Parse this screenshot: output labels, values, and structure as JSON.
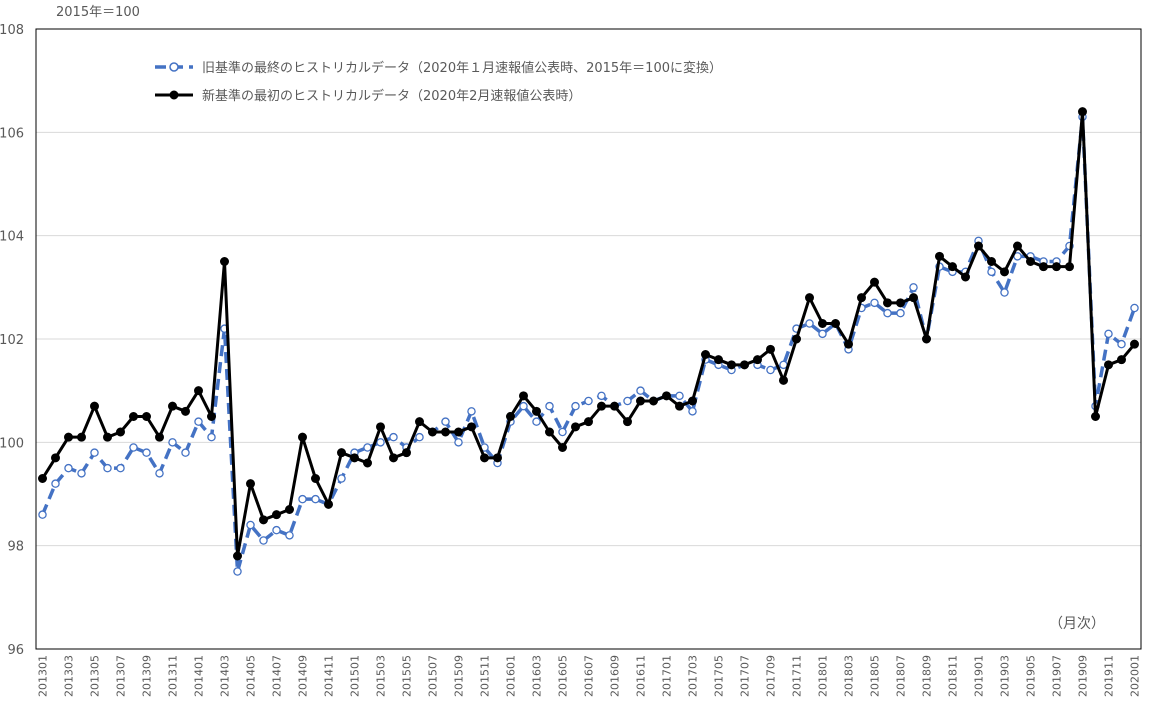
{
  "chart_data": {
    "type": "line",
    "unit_label": "2015年＝100",
    "note": "（月次）",
    "ylim": [
      96,
      108
    ],
    "y_ticks": [
      "96",
      "98",
      "100",
      "102",
      "104",
      "106",
      "108"
    ],
    "grid": true,
    "legend_position": "top-left",
    "x": [
      "201301",
      "201302",
      "201303",
      "201304",
      "201305",
      "201306",
      "201307",
      "201308",
      "201309",
      "201310",
      "201311",
      "201312",
      "201401",
      "201402",
      "201403",
      "201404",
      "201405",
      "201406",
      "201407",
      "201408",
      "201409",
      "201410",
      "201411",
      "201412",
      "201501",
      "201502",
      "201503",
      "201504",
      "201505",
      "201506",
      "201507",
      "201508",
      "201509",
      "201510",
      "201511",
      "201512",
      "201601",
      "201602",
      "201603",
      "201604",
      "201605",
      "201606",
      "201607",
      "201608",
      "201609",
      "201610",
      "201611",
      "201612",
      "201701",
      "201702",
      "201703",
      "201704",
      "201705",
      "201706",
      "201707",
      "201708",
      "201709",
      "201710",
      "201711",
      "201712",
      "201801",
      "201802",
      "201803",
      "201804",
      "201805",
      "201806",
      "201807",
      "201808",
      "201809",
      "201810",
      "201811",
      "201812",
      "201901",
      "201902",
      "201903",
      "201904",
      "201905",
      "201906",
      "201907",
      "201908",
      "201909",
      "201910",
      "201911",
      "201912",
      "202001"
    ],
    "x_tick_labels": [
      "201301",
      "201303",
      "201305",
      "201307",
      "201309",
      "201311",
      "201401",
      "201403",
      "201405",
      "201407",
      "201409",
      "201411",
      "201501",
      "201503",
      "201505",
      "201507",
      "201509",
      "201511",
      "201601",
      "201603",
      "201605",
      "201607",
      "201609",
      "201611",
      "201701",
      "201703",
      "201705",
      "201707",
      "201709",
      "201711",
      "201801",
      "201803",
      "201805",
      "201807",
      "201809",
      "201811",
      "201901",
      "201903",
      "201905",
      "201907",
      "201909",
      "201911",
      "202001"
    ],
    "series": [
      {
        "name": "旧基準の最終のヒストリカルデータ（2020年１月速報値公表時、2015年＝100に変換）",
        "color": "#4472C4",
        "style": "dashed-open-circle",
        "values": [
          98.6,
          99.2,
          99.5,
          99.4,
          99.8,
          99.5,
          99.5,
          99.9,
          99.8,
          99.4,
          100.0,
          99.8,
          100.4,
          100.1,
          102.2,
          97.5,
          98.4,
          98.1,
          98.3,
          98.2,
          98.9,
          98.9,
          98.8,
          99.3,
          99.8,
          99.9,
          100.0,
          100.1,
          99.9,
          100.1,
          100.2,
          100.4,
          100.0,
          100.6,
          99.9,
          99.6,
          100.4,
          100.7,
          100.4,
          100.7,
          100.2,
          100.7,
          100.8,
          100.9,
          100.7,
          100.8,
          101.0,
          100.8,
          100.9,
          100.9,
          100.6,
          101.6,
          101.5,
          101.4,
          101.5,
          101.5,
          101.4,
          101.5,
          102.2,
          102.3,
          102.1,
          102.3,
          101.8,
          102.6,
          102.7,
          102.5,
          102.5,
          103.0,
          102.0,
          103.4,
          103.3,
          103.3,
          103.9,
          103.3,
          102.9,
          103.6,
          103.6,
          103.5,
          103.5,
          103.8,
          106.3,
          100.7,
          102.1,
          101.9,
          102.6
        ]
      },
      {
        "name": "新基準の最初のヒストリカルデータ（2020年2月速報値公表時）",
        "color": "#000000",
        "style": "solid-filled-circle",
        "values": [
          99.3,
          99.7,
          100.1,
          100.1,
          100.7,
          100.1,
          100.2,
          100.5,
          100.5,
          100.1,
          100.7,
          100.6,
          101.0,
          100.5,
          103.5,
          97.8,
          99.2,
          98.5,
          98.6,
          98.7,
          100.1,
          99.3,
          98.8,
          99.8,
          99.7,
          99.6,
          100.3,
          99.7,
          99.8,
          100.4,
          100.2,
          100.2,
          100.2,
          100.3,
          99.7,
          99.7,
          100.5,
          100.9,
          100.6,
          100.2,
          99.9,
          100.3,
          100.4,
          100.7,
          100.7,
          100.4,
          100.8,
          100.8,
          100.9,
          100.7,
          100.8,
          101.7,
          101.6,
          101.5,
          101.5,
          101.6,
          101.8,
          101.2,
          102.0,
          102.8,
          102.3,
          102.3,
          101.9,
          102.8,
          103.1,
          102.7,
          102.7,
          102.8,
          102.0,
          103.6,
          103.4,
          103.2,
          103.8,
          103.5,
          103.3,
          103.8,
          103.5,
          103.4,
          103.4,
          103.4,
          106.4,
          100.5,
          101.5,
          101.6,
          101.9
        ]
      }
    ]
  }
}
